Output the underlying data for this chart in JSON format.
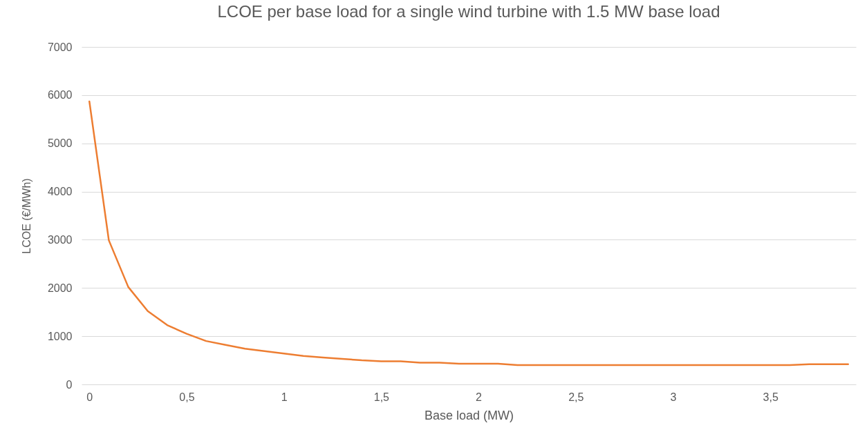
{
  "chart_data": {
    "type": "line",
    "title": "LCOE per base load for a single wind turbine with 1.5 MW base load",
    "xlabel": "Base load (MW)",
    "ylabel": "LCOE (€/MWh)",
    "x": [
      0,
      0.1,
      0.2,
      0.3,
      0.4,
      0.5,
      0.6,
      0.7,
      0.8,
      0.9,
      1,
      1.1,
      1.2,
      1.3,
      1.4,
      1.5,
      1.6,
      1.7,
      1.8,
      1.9,
      2,
      2.1,
      2.2,
      2.3,
      2.4,
      2.5,
      2.6,
      2.7,
      2.8,
      2.9,
      3,
      3.1,
      3.2,
      3.3,
      3.4,
      3.5,
      3.6,
      3.7,
      3.8,
      3.9
    ],
    "series": [
      {
        "color": "#ed7d31",
        "values": [
          5870,
          2990,
          2020,
          1520,
          1230,
          1050,
          900,
          820,
          740,
          690,
          640,
          590,
          560,
          530,
          500,
          480,
          480,
          450,
          450,
          430,
          430,
          430,
          400,
          400,
          400,
          400,
          400,
          400,
          400,
          400,
          400,
          400,
          400,
          400,
          400,
          400,
          400,
          420,
          420,
          420
        ]
      }
    ],
    "xlim": [
      -0.04,
      3.94
    ],
    "xticks": [
      0,
      {
        "value": 0.5,
        "label": "0,5"
      },
      1,
      {
        "value": 1.5,
        "label": "1,5"
      },
      2,
      {
        "value": 2.5,
        "label": "2,5"
      },
      3,
      {
        "value": 3.5,
        "label": "3,5"
      }
    ],
    "ylim": [
      0,
      7000
    ],
    "yticks": [
      0,
      1000,
      2000,
      3000,
      4000,
      5000,
      6000,
      7000
    ],
    "grid": "y",
    "marker": "none",
    "line_style": "solid"
  }
}
